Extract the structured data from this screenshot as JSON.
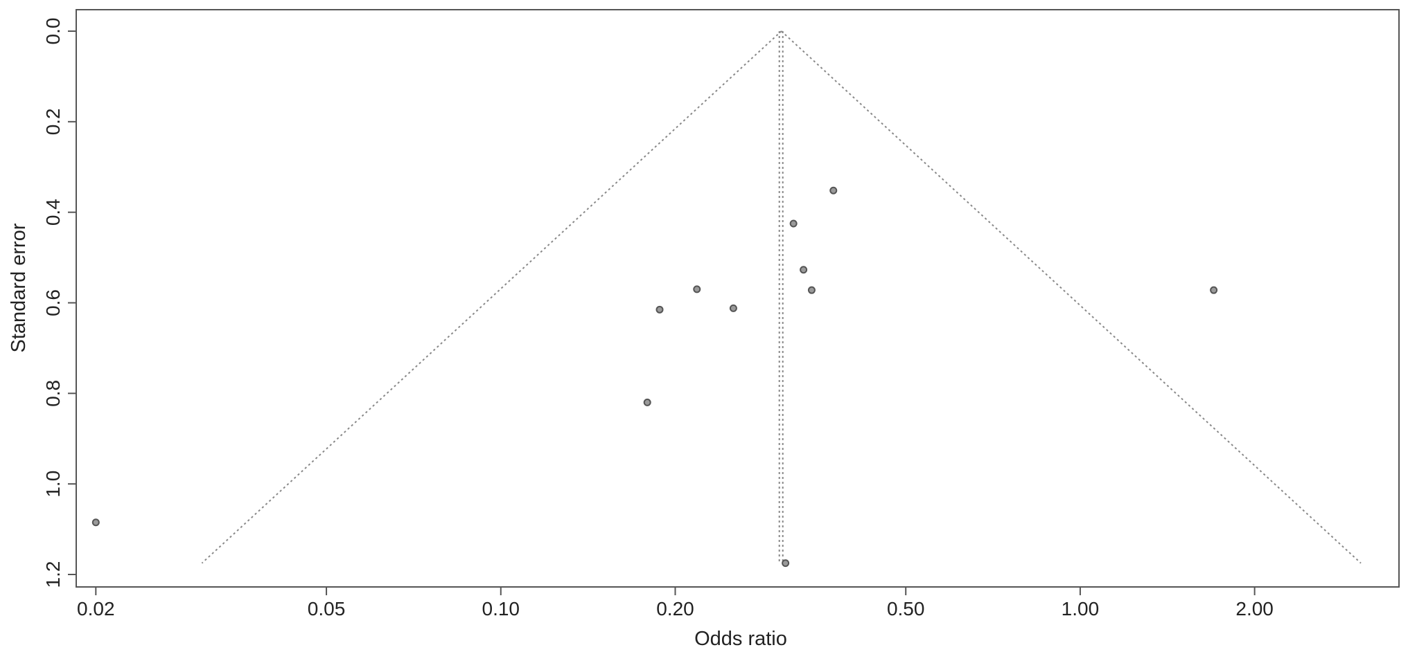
{
  "colors": {
    "axis": "#555555",
    "point_stroke": "#555555",
    "point_fill": "#9a9a9a",
    "guide": "#888888"
  },
  "chart_data": {
    "type": "scatter",
    "subtype": "funnel-plot",
    "title": "",
    "xlabel": "Odds ratio",
    "ylabel": "Standard error",
    "x_scale": "log",
    "y_reversed": true,
    "xlim": [
      0.0185,
      3.55
    ],
    "ylim": [
      0,
      1.2
    ],
    "x_ticks": [
      {
        "value": 0.02,
        "label": "0.02"
      },
      {
        "value": 0.05,
        "label": "0.05"
      },
      {
        "value": 0.1,
        "label": "0.10"
      },
      {
        "value": 0.2,
        "label": "0.20"
      },
      {
        "value": 0.5,
        "label": "0.50"
      },
      {
        "value": 1.0,
        "label": "1.00"
      },
      {
        "value": 2.0,
        "label": "2.00"
      }
    ],
    "y_ticks": [
      {
        "value": 0.0,
        "label": "0.0"
      },
      {
        "value": 0.2,
        "label": "0.2"
      },
      {
        "value": 0.4,
        "label": "0.4"
      },
      {
        "value": 0.6,
        "label": "0.6"
      },
      {
        "value": 0.8,
        "label": "0.8"
      },
      {
        "value": 1.0,
        "label": "1.0"
      },
      {
        "value": 1.2,
        "label": "1.2"
      }
    ],
    "pooled_or": 0.305,
    "funnel_max_se": 1.175,
    "grid": false,
    "points": [
      {
        "x": 0.02,
        "y": 1.085
      },
      {
        "x": 0.179,
        "y": 0.82
      },
      {
        "x": 0.188,
        "y": 0.615
      },
      {
        "x": 0.218,
        "y": 0.57
      },
      {
        "x": 0.252,
        "y": 0.612
      },
      {
        "x": 0.32,
        "y": 0.425
      },
      {
        "x": 0.333,
        "y": 0.527
      },
      {
        "x": 0.344,
        "y": 0.572
      },
      {
        "x": 0.375,
        "y": 0.352
      },
      {
        "x": 1.7,
        "y": 0.572
      },
      {
        "x": 0.31,
        "y": 1.175
      }
    ]
  }
}
